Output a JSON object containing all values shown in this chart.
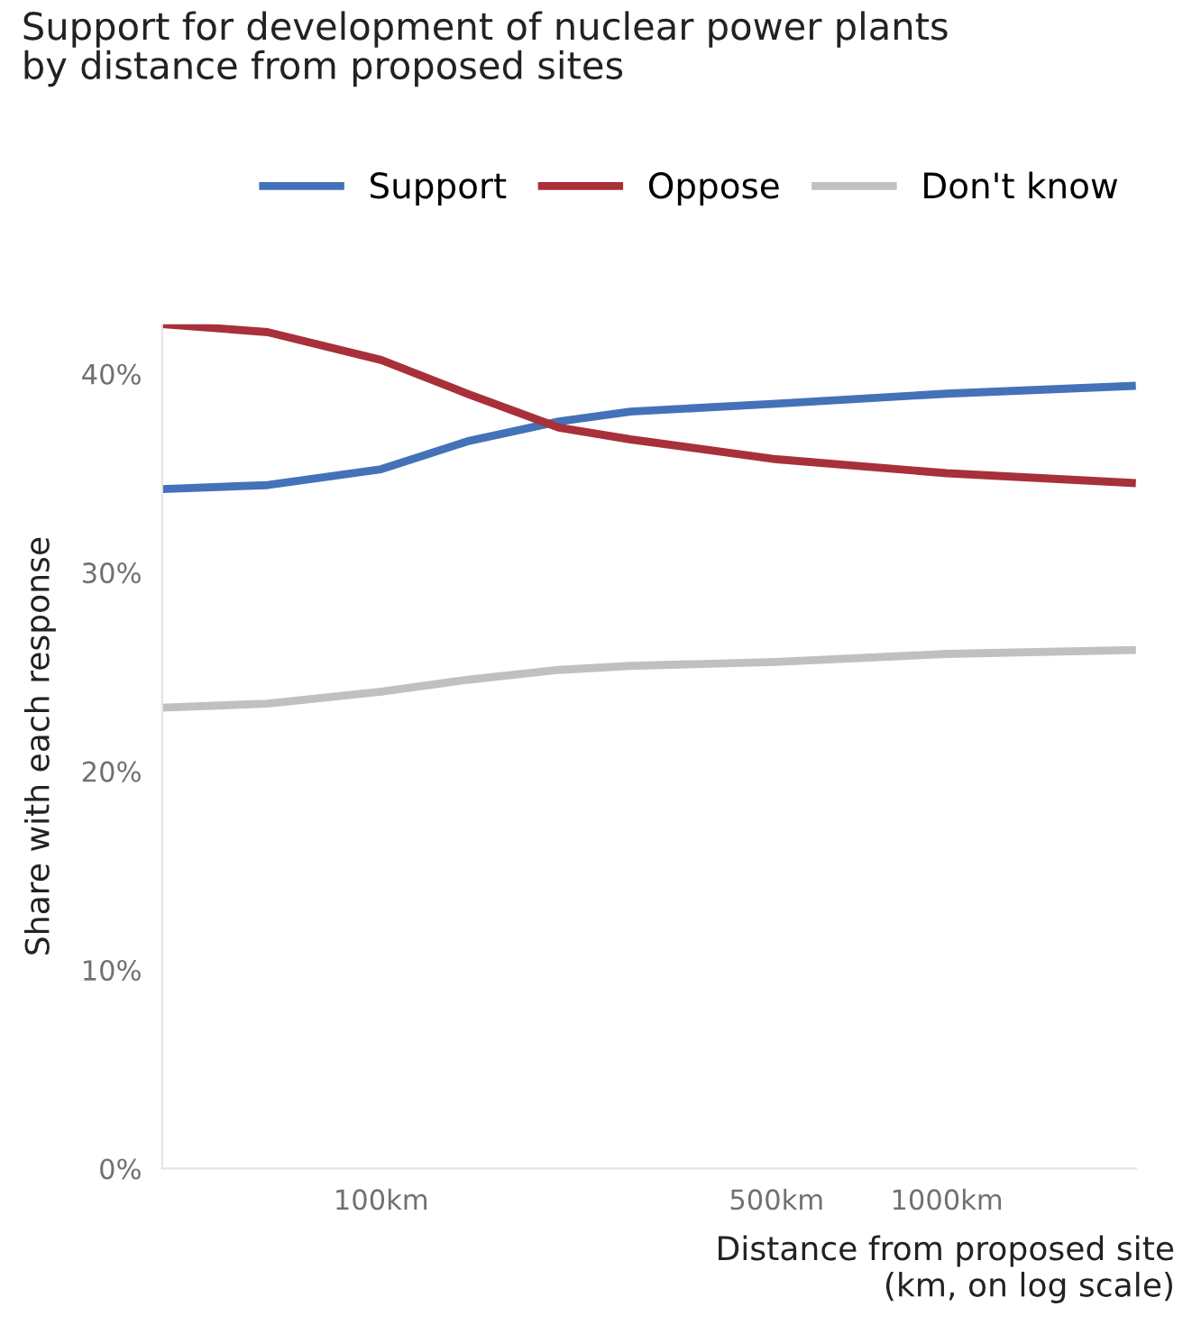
{
  "chart_data": {
    "type": "line",
    "title": "Support for development of nuclear power plants\nby distance from proposed sites",
    "xlabel": "Distance from proposed site\n(km, on log scale)",
    "ylabel": "Share with each response",
    "x": [
      41,
      63,
      100,
      142,
      206,
      276,
      500,
      1000,
      2160
    ],
    "series": [
      {
        "name": "Support",
        "color": "#4472b8",
        "values": [
          34.2,
          34.4,
          35.2,
          36.6,
          37.6,
          38.1,
          38.5,
          39.0,
          39.4
        ]
      },
      {
        "name": "Oppose",
        "color": "#a8303a",
        "values": [
          42.5,
          42.1,
          40.7,
          39.0,
          37.3,
          36.7,
          35.7,
          35.0,
          34.5
        ]
      },
      {
        "name": "Don't know",
        "color": "#c0c0c0",
        "values": [
          23.2,
          23.4,
          24.0,
          24.6,
          25.1,
          25.3,
          25.5,
          25.9,
          26.1
        ]
      }
    ],
    "log": "x",
    "xlim": [
      41,
      2160
    ],
    "ylim": [
      0,
      42.5
    ],
    "xticks": [
      {
        "value": 100,
        "label": "100km"
      },
      {
        "value": 500,
        "label": "500km"
      },
      {
        "value": 1000,
        "label": "1000km"
      }
    ],
    "yticks": [
      {
        "value": 0,
        "label": "0%"
      },
      {
        "value": 10,
        "label": "10%"
      },
      {
        "value": 20,
        "label": "20%"
      },
      {
        "value": 30,
        "label": "30%"
      },
      {
        "value": 40,
        "label": "40%"
      }
    ],
    "grid": false,
    "legend": "top right",
    "marker": "none",
    "line_style": "solid"
  }
}
